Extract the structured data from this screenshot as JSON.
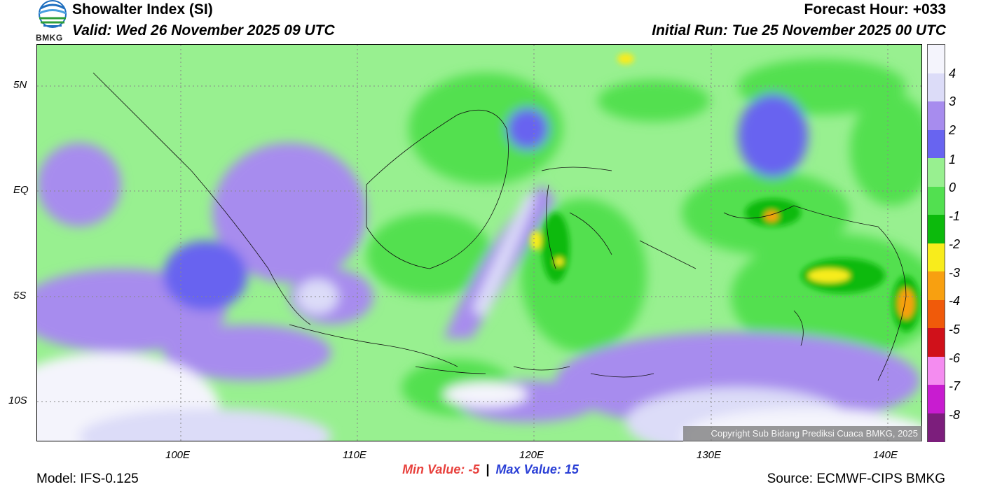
{
  "header": {
    "title": "Showalter Index (SI)",
    "valid": "Valid: Wed 26 November 2025 09 UTC",
    "forecast_hour": "Forecast Hour: +033",
    "initial_run": "Initial Run: Tue 25 November 2025 00 UTC",
    "logo_text": "BMKG"
  },
  "axes": {
    "lat_labels": [
      "5N",
      "EQ",
      "5S",
      "10S"
    ],
    "lon_labels": [
      "100E",
      "110E",
      "120E",
      "130E",
      "140E"
    ]
  },
  "colorbar": {
    "labels": [
      "4",
      "3",
      "2",
      "1",
      "0",
      "-1",
      "-2",
      "-3",
      "-4",
      "-5",
      "-6",
      "-7",
      "-8"
    ],
    "colors": [
      "#f4f4fc",
      "#dcdcf8",
      "#a78cee",
      "#6864f0",
      "#98f090",
      "#52e050",
      "#0cba0c",
      "#f8ec1c",
      "#f8a010",
      "#f05a0a",
      "#d0111a",
      "#f48cf0",
      "#c81cd0",
      "#7c1e7c"
    ]
  },
  "stats": {
    "min_label": "Min Value:",
    "min_value": "-5",
    "separator": "|",
    "max_label": "Max Value:",
    "max_value": "15"
  },
  "footer": {
    "model": "Model: IFS-0.125",
    "source": "Source: ECMWF-CIPS BMKG",
    "copyright": "Copyright Sub Bidang Prediksi Cuaca BMKG, 2025"
  }
}
